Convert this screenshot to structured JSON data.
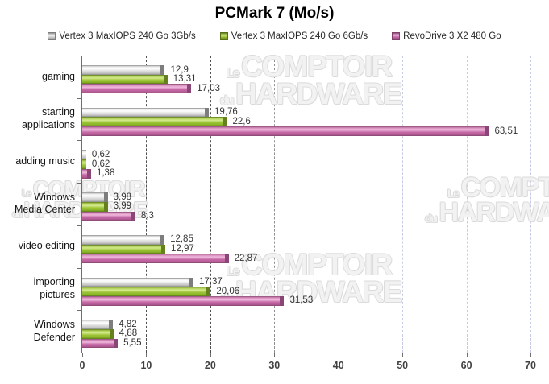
{
  "title": "PCMark 7 (Mo/s)",
  "watermark": {
    "small1": "Le",
    "big1": "COMPTOIR",
    "small2": "du",
    "big2": "HARDWARE"
  },
  "chart_data": {
    "type": "bar",
    "orientation": "horizontal",
    "title": "PCMark 7 (Mo/s)",
    "categories": [
      "gaming",
      "starting applications",
      "adding music",
      "Windows Media Center",
      "video editing",
      "importing pictures",
      "Windows Defender"
    ],
    "category_lines": [
      [
        "gaming"
      ],
      [
        "starting",
        "applications"
      ],
      [
        "adding music"
      ],
      [
        "Windows",
        "Media Center"
      ],
      [
        "video editing"
      ],
      [
        "importing",
        "pictures"
      ],
      [
        "Windows",
        "Defender"
      ]
    ],
    "series": [
      {
        "name": "Vertex 3 MaxIOPS 240 Go 3Gb/s",
        "color": "#c9c9c9",
        "values": [
          12.9,
          19.76,
          0.62,
          3.98,
          12.85,
          17.37,
          4.82
        ],
        "labels": [
          "12,9",
          "19,76",
          "0,62",
          "3,98",
          "12,85",
          "17,37",
          "4,82"
        ]
      },
      {
        "name": "Vertex 3 MaxIOPS 240 Go 6Gb/s",
        "color": "#9cc436",
        "values": [
          13.31,
          22.6,
          0.62,
          3.99,
          12.97,
          20.06,
          4.88
        ],
        "labels": [
          "13,31",
          "22,6",
          "0,62",
          "3,99",
          "12,97",
          "20,06",
          "4,88"
        ]
      },
      {
        "name": "RevoDrive 3 X2 480 Go",
        "color": "#c76aa8",
        "values": [
          17.03,
          63.51,
          1.38,
          8.3,
          22.87,
          31.53,
          5.55
        ],
        "labels": [
          "17,03",
          "63,51",
          "1,38",
          "8,3",
          "22,87",
          "31,53",
          "5,55"
        ]
      }
    ],
    "x_ticks": [
      0,
      10,
      20,
      30,
      40,
      50,
      60,
      70
    ],
    "xlim": [
      0,
      70
    ],
    "decimal_separator": ",",
    "grid": "vertical-dashed",
    "gridline_colors": [
      "#4f4f4f",
      "#4f4f4f",
      "#8f8f8f",
      "#c3cbe6",
      "#c3cbe6",
      "#c3cbe6",
      "#c3cbe6"
    ],
    "axis_color": "#6e6e6e",
    "legend_position": "top"
  }
}
